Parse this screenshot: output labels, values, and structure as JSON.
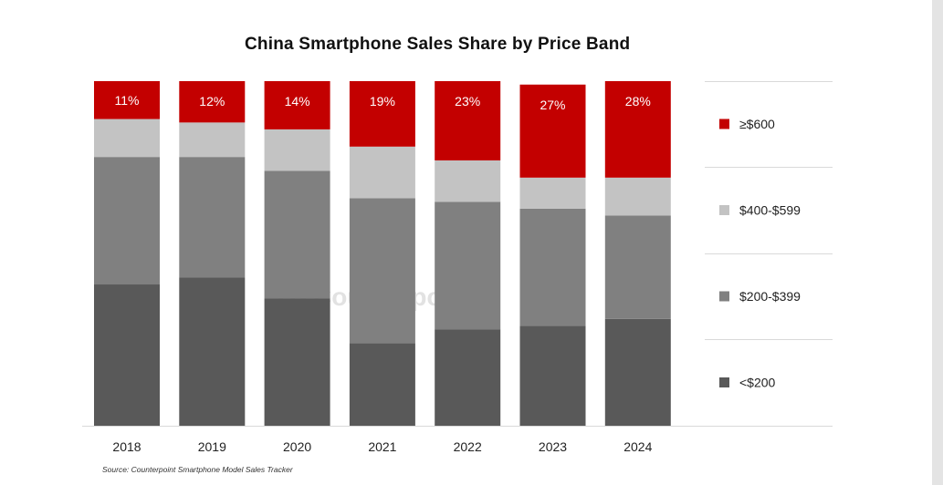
{
  "chart_data": {
    "type": "bar",
    "stacked": true,
    "title": "China Smartphone Sales Share by Price Band",
    "categories": [
      "2018",
      "2019",
      "2020",
      "2021",
      "2022",
      "2023",
      "2024"
    ],
    "series": [
      {
        "name": "<$200",
        "color": "#595959",
        "values": [
          41,
          43,
          37,
          24,
          28,
          29,
          31
        ]
      },
      {
        "name": "$200-$399",
        "color": "#808080",
        "values": [
          37,
          35,
          37,
          42,
          37,
          34,
          30
        ]
      },
      {
        "name": "$400-$599",
        "color": "#c3c3c3",
        "values": [
          11,
          10,
          12,
          15,
          12,
          9,
          11
        ]
      },
      {
        "name": "≥$600",
        "color": "#c30000",
        "values": [
          11,
          12,
          14,
          19,
          23,
          27,
          28
        ]
      }
    ],
    "data_labels": [
      "11%",
      "12%",
      "14%",
      "19%",
      "23%",
      "27%",
      "28%"
    ],
    "legend": [
      "≥$600",
      "$400-$599",
      "$200-$399",
      "<$200"
    ],
    "ylim": [
      0,
      100
    ],
    "xlabel": "",
    "ylabel": ""
  },
  "watermark": "Counterpoint",
  "source": "Source: Counterpoint Smartphone Model Sales Tracker"
}
